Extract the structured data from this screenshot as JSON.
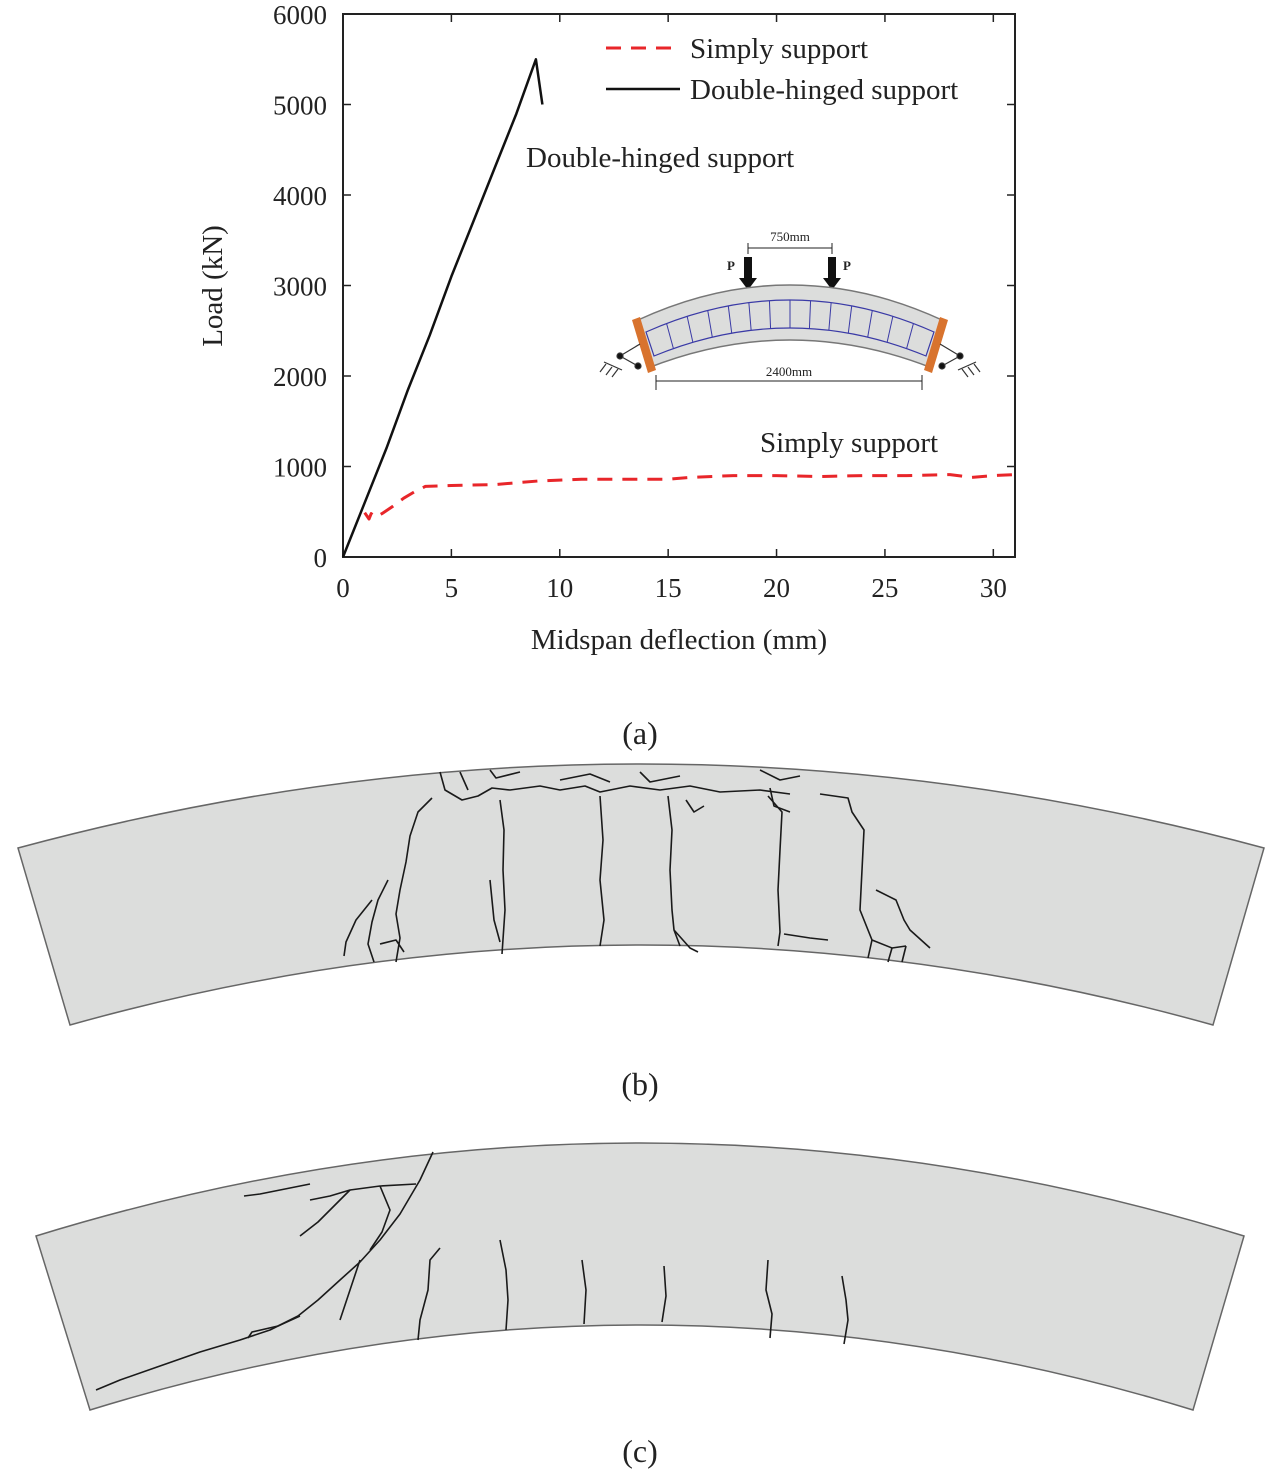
{
  "chart_data": {
    "type": "line",
    "xlabel": "Midspan deflection (mm)",
    "ylabel": "Load (kN)",
    "xlim": [
      0,
      31
    ],
    "ylim": [
      0,
      6000
    ],
    "xticks": [
      0,
      5,
      10,
      15,
      20,
      25,
      30
    ],
    "yticks": [
      0,
      1000,
      2000,
      3000,
      4000,
      5000,
      6000
    ],
    "legend_position": "top-right",
    "series": [
      {
        "name": "Simply support",
        "style": "dashed",
        "color": "#e8262a",
        "x": [
          1.0,
          1.2,
          1.3,
          1.5,
          1.8,
          2.3,
          2.8,
          3.3,
          3.8,
          5,
          7,
          9,
          11,
          13,
          15,
          16,
          18,
          20,
          22,
          24,
          26,
          28,
          29,
          30,
          31
        ],
        "y": [
          490,
          420,
          480,
          440,
          480,
          560,
          650,
          720,
          780,
          790,
          800,
          840,
          860,
          860,
          860,
          880,
          900,
          900,
          890,
          900,
          900,
          910,
          880,
          900,
          910
        ]
      },
      {
        "name": "Double-hinged support",
        "style": "solid",
        "color": "#111111",
        "x": [
          0,
          1,
          2,
          3,
          4,
          5,
          6,
          7,
          8,
          8.9,
          9.2
        ],
        "y": [
          0,
          600,
          1200,
          1850,
          2450,
          3100,
          3700,
          4300,
          4900,
          5500,
          5000
        ]
      }
    ],
    "annotations": [
      {
        "text": "Double-hinged support",
        "near": "top of black curve"
      },
      {
        "text": "Simply support",
        "near": "above dashed red curve"
      }
    ],
    "inset": {
      "spacing_label": "750mm",
      "span_label": "2400mm",
      "load_label": "P"
    }
  },
  "panels": {
    "a": "(a)",
    "b": "(b)",
    "c": "(c)"
  },
  "colors": {
    "beam_fill": "#dcdddc",
    "beam_edge": "#666666",
    "crack": "#1a1a1a",
    "inset_mesh": "#3a3aa6",
    "inset_plate": "#d8732e"
  }
}
